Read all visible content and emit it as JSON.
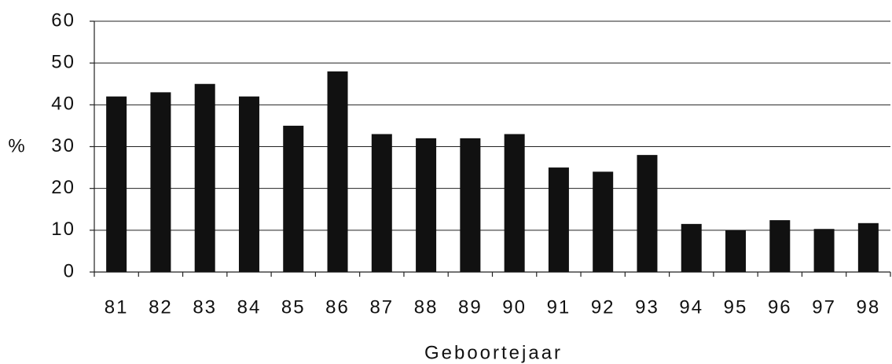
{
  "chart_data": {
    "type": "bar",
    "y_label": "%",
    "x_label": "Geboortejaar",
    "categories": [
      "81",
      "82",
      "83",
      "84",
      "85",
      "86",
      "87",
      "88",
      "89",
      "90",
      "91",
      "92",
      "93",
      "94",
      "95",
      "96",
      "97",
      "98"
    ],
    "values": [
      42,
      43,
      45,
      42,
      35,
      48,
      33,
      32,
      32,
      33,
      25,
      24,
      28,
      11.5,
      10,
      12.4,
      10.3,
      11.7
    ],
    "color": "#111111",
    "ylim": [
      0,
      60
    ],
    "yticks": [
      0,
      10,
      20,
      30,
      40,
      50,
      60
    ],
    "grid": true
  }
}
